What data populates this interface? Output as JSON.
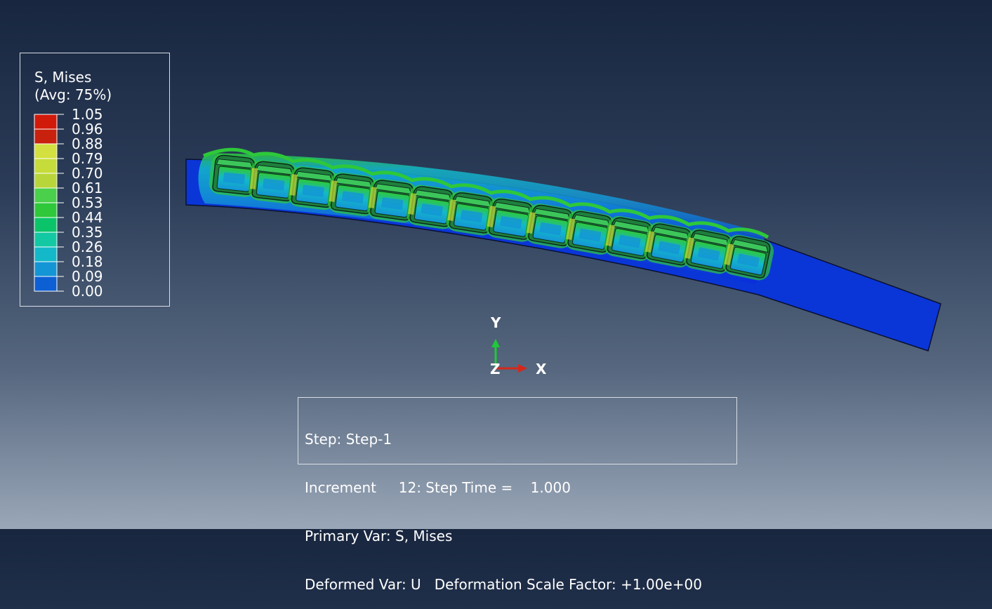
{
  "legend": {
    "title_line1": "S, Mises",
    "title_line2": "(Avg: 75%)",
    "levels": [
      "1.05",
      "0.96",
      "0.88",
      "0.79",
      "0.70",
      "0.61",
      "0.53",
      "0.44",
      "0.35",
      "0.26",
      "0.18",
      "0.09",
      "0.00"
    ],
    "band_colors": [
      "#d21a0b",
      "#c8220e",
      "#d3e040",
      "#c6dc3a",
      "#b8d63a",
      "#4ad04a",
      "#2ec83a",
      "#0bc46a",
      "#12c9a4",
      "#13b9c8",
      "#1495d6",
      "#0d5fd4",
      "#0a2cdc"
    ]
  },
  "triad": {
    "y_label": "Y",
    "z_label": "Z",
    "x_label": "X",
    "y_color": "#1fc83a",
    "x_color": "#d4281c"
  },
  "info": {
    "step": "Step: Step-1",
    "increment": "Increment     12: Step Time =    1.000",
    "primary_var": "Primary Var: S, Mises",
    "deformed_var": "Deformed Var: U   Deformation Scale Factor: +1.00e+00"
  },
  "model": {
    "cell_count": 14,
    "body_color": "#0a36d8",
    "contour_colors": [
      "#0a2cdc",
      "#1495d6",
      "#13b9c8",
      "#2ec83a",
      "#c6dc3a"
    ]
  }
}
